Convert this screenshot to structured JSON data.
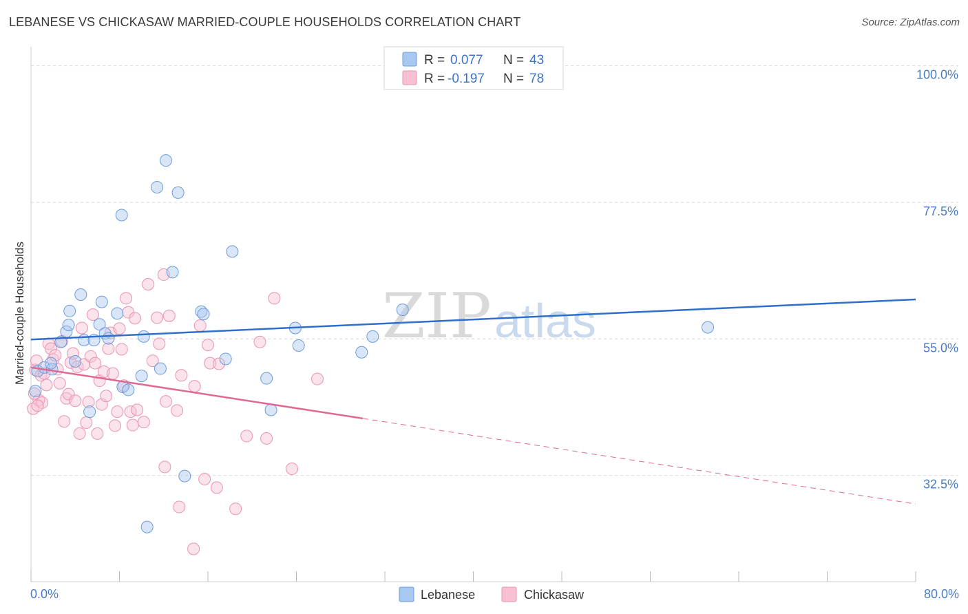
{
  "header": {
    "title": "LEBANESE VS CHICKASAW MARRIED-COUPLE HOUSEHOLDS CORRELATION CHART",
    "source": "Source: ZipAtlas.com"
  },
  "watermark": {
    "part1": "ZIP",
    "part2": "atlas"
  },
  "legend": {
    "rows": [
      {
        "r_label": "R = ",
        "r_value": "0.077",
        "n_label": "N = ",
        "n_value": "43"
      },
      {
        "r_label": "R = ",
        "r_value": "-0.197",
        "n_label": "N = ",
        "n_value": "78"
      }
    ]
  },
  "bottom_legend": [
    {
      "label": "Lebanese"
    },
    {
      "label": "Chickasaw"
    }
  ],
  "colors": {
    "lebanese_fill": "#a9c8f0",
    "lebanese_stroke": "#6d9bd8",
    "lebanese_line": "#2f6fcb",
    "chickasaw_fill": "#f7c1d3",
    "chickasaw_stroke": "#e993b1",
    "chickasaw_line": "#e06894",
    "grid": "#d8d8d8",
    "tick_label": "#4a7cc4"
  },
  "chart_data": {
    "type": "scatter",
    "title": "LEBANESE VS CHICKASAW MARRIED-COUPLE HOUSEHOLDS CORRELATION CHART",
    "xlabel": "",
    "ylabel": "Married-couple Households",
    "xlim": [
      0,
      80
    ],
    "ylim": [
      15,
      102
    ],
    "x_tick_labels": [
      "0.0%",
      "80.0%"
    ],
    "y_ticks": [
      32.5,
      55.0,
      77.5,
      100.0
    ],
    "y_tick_labels": [
      "32.5%",
      "55.0%",
      "77.5%",
      "100.0%"
    ],
    "grid": true,
    "legend_position": "top-center",
    "series": [
      {
        "name": "Lebanese",
        "r": 0.077,
        "n": 43,
        "trend": {
          "x": [
            0,
            80
          ],
          "y": [
            54.9,
            61.5
          ]
        },
        "points": [
          [
            0.6,
            49.7
          ],
          [
            1.2,
            50.3
          ],
          [
            1.9,
            50.0
          ],
          [
            2.7,
            54.5
          ],
          [
            3.2,
            56.2
          ],
          [
            3.5,
            59.6
          ],
          [
            3.4,
            57.3
          ],
          [
            4.5,
            62.3
          ],
          [
            4.8,
            54.8
          ],
          [
            5.7,
            54.8
          ],
          [
            6.2,
            57.4
          ],
          [
            6.4,
            61.1
          ],
          [
            6.7,
            55.9
          ],
          [
            7.0,
            55.1
          ],
          [
            7.8,
            59.2
          ],
          [
            8.2,
            75.4
          ],
          [
            8.3,
            47.1
          ],
          [
            8.8,
            46.6
          ],
          [
            10.0,
            48.9
          ],
          [
            10.2,
            55.4
          ],
          [
            10.5,
            24.0
          ],
          [
            11.4,
            80.0
          ],
          [
            11.7,
            50.1
          ],
          [
            12.2,
            84.4
          ],
          [
            12.8,
            66.0
          ],
          [
            13.3,
            79.1
          ],
          [
            13.9,
            32.4
          ],
          [
            15.4,
            59.5
          ],
          [
            15.6,
            59.1
          ],
          [
            17.6,
            51.7
          ],
          [
            18.2,
            69.4
          ],
          [
            21.3,
            48.5
          ],
          [
            21.7,
            43.3
          ],
          [
            23.9,
            56.8
          ],
          [
            24.2,
            53.9
          ],
          [
            29.9,
            52.8
          ],
          [
            30.9,
            55.4
          ],
          [
            33.6,
            59.8
          ],
          [
            61.2,
            56.9
          ],
          [
            4.0,
            51.3
          ],
          [
            1.8,
            51.0
          ],
          [
            0.4,
            46.4
          ],
          [
            5.3,
            43.0
          ]
        ]
      },
      {
        "name": "Chickasaw",
        "r": -0.197,
        "n": 78,
        "trend": {
          "x": [
            0,
            30
          ],
          "y": [
            50.3,
            41.9
          ]
        },
        "trend_dashed": {
          "x": [
            30,
            80
          ],
          "y": [
            41.9,
            27.8
          ]
        },
        "points": [
          [
            0.2,
            43.5
          ],
          [
            0.4,
            49.9
          ],
          [
            0.5,
            51.4
          ],
          [
            0.7,
            44.9
          ],
          [
            0.9,
            49.0
          ],
          [
            1.0,
            44.5
          ],
          [
            1.2,
            49.3
          ],
          [
            1.4,
            47.4
          ],
          [
            1.6,
            54.2
          ],
          [
            1.8,
            53.4
          ],
          [
            2.0,
            51.6
          ],
          [
            2.2,
            52.3
          ],
          [
            2.4,
            50.0
          ],
          [
            2.6,
            47.7
          ],
          [
            2.8,
            54.6
          ],
          [
            3.0,
            41.4
          ],
          [
            3.2,
            45.2
          ],
          [
            3.4,
            45.9
          ],
          [
            3.6,
            51.1
          ],
          [
            3.8,
            52.6
          ],
          [
            4.0,
            44.8
          ],
          [
            4.2,
            50.4
          ],
          [
            4.4,
            39.4
          ],
          [
            4.6,
            56.8
          ],
          [
            4.8,
            50.8
          ],
          [
            5.0,
            41.2
          ],
          [
            5.2,
            44.6
          ],
          [
            5.4,
            52.1
          ],
          [
            5.6,
            59.0
          ],
          [
            5.8,
            51.0
          ],
          [
            6.0,
            39.4
          ],
          [
            6.2,
            48.1
          ],
          [
            6.4,
            44.2
          ],
          [
            6.6,
            49.6
          ],
          [
            6.8,
            45.6
          ],
          [
            7.0,
            53.4
          ],
          [
            7.2,
            56.0
          ],
          [
            7.4,
            49.3
          ],
          [
            7.6,
            40.7
          ],
          [
            7.8,
            43.0
          ],
          [
            8.0,
            56.7
          ],
          [
            8.2,
            53.3
          ],
          [
            8.4,
            47.3
          ],
          [
            8.6,
            61.7
          ],
          [
            8.8,
            59.4
          ],
          [
            9.0,
            43.0
          ],
          [
            9.2,
            40.8
          ],
          [
            9.4,
            58.4
          ],
          [
            9.6,
            43.3
          ],
          [
            10.2,
            41.3
          ],
          [
            10.6,
            64.0
          ],
          [
            11.0,
            51.4
          ],
          [
            11.4,
            58.5
          ],
          [
            11.6,
            54.2
          ],
          [
            12.0,
            65.6
          ],
          [
            12.1,
            33.9
          ],
          [
            12.2,
            44.7
          ],
          [
            12.5,
            58.8
          ],
          [
            13.2,
            43.2
          ],
          [
            13.4,
            27.3
          ],
          [
            13.6,
            49.0
          ],
          [
            14.8,
            47.2
          ],
          [
            15.3,
            57.2
          ],
          [
            15.7,
            31.9
          ],
          [
            16.0,
            54.0
          ],
          [
            16.2,
            51.0
          ],
          [
            16.8,
            30.5
          ],
          [
            17.0,
            50.9
          ],
          [
            18.5,
            27.0
          ],
          [
            19.5,
            39.0
          ],
          [
            20.7,
            54.5
          ],
          [
            21.3,
            38.6
          ],
          [
            22.0,
            61.7
          ],
          [
            23.6,
            33.6
          ],
          [
            25.9,
            48.4
          ],
          [
            14.7,
            20.4
          ],
          [
            0.3,
            46.0
          ],
          [
            0.6,
            44.0
          ]
        ]
      }
    ]
  }
}
